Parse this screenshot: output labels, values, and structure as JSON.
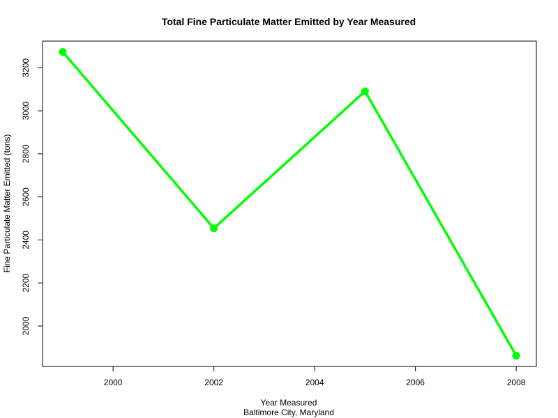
{
  "chart_data": {
    "type": "line",
    "title": "Total Fine Particulate Matter Emitted by Year Measured",
    "xlabel": "Year Measured",
    "subtitle": "Baltimore City, Maryland",
    "ylabel": "Fine Particulate Matter Emitted (tons)",
    "x": [
      1999,
      2002,
      2005,
      2008
    ],
    "series": [
      {
        "values": [
          3274,
          2454,
          3091,
          1862
        ],
        "color": "#00ff00"
      }
    ],
    "xlim": [
      1998.6,
      2008.4
    ],
    "ylim": [
      1812,
      3324
    ],
    "x_ticks": [
      "2000",
      "2002",
      "2004",
      "2006",
      "2008"
    ],
    "y_ticks": [
      "2000",
      "2200",
      "2400",
      "2600",
      "2800",
      "3000",
      "3200"
    ],
    "grid": false,
    "legend": "none",
    "markers": "filled-circle"
  }
}
